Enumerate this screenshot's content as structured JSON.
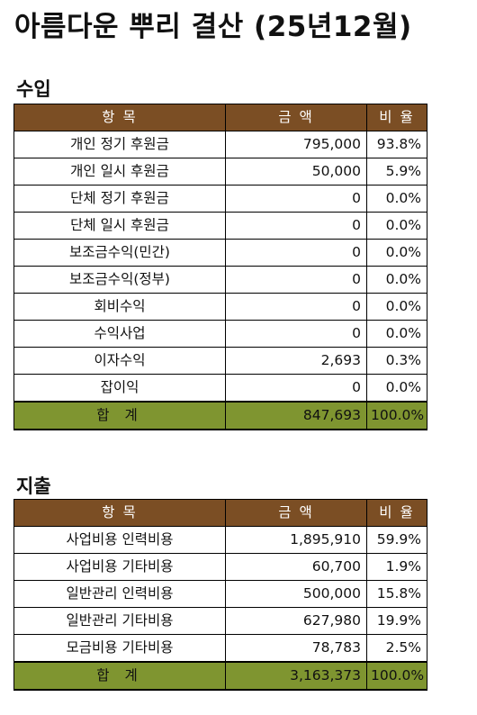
{
  "title": "아름다운 뿌리 결산 (25년12월)",
  "income": {
    "heading": "수입",
    "headers": [
      "항 목",
      "금 액",
      "비 율"
    ],
    "rows": [
      {
        "item": "개인 정기 후원금",
        "amount": "795,000",
        "ratio": "93.8%"
      },
      {
        "item": "개인 일시 후원금",
        "amount": "50,000",
        "ratio": "5.9%"
      },
      {
        "item": "단체 정기 후원금",
        "amount": "0",
        "ratio": "0.0%"
      },
      {
        "item": "단체 일시 후원금",
        "amount": "0",
        "ratio": "0.0%"
      },
      {
        "item": "보조금수익(민간)",
        "amount": "0",
        "ratio": "0.0%"
      },
      {
        "item": "보조금수익(정부)",
        "amount": "0",
        "ratio": "0.0%"
      },
      {
        "item": "회비수익",
        "amount": "0",
        "ratio": "0.0%"
      },
      {
        "item": "수익사업",
        "amount": "0",
        "ratio": "0.0%"
      },
      {
        "item": "이자수익",
        "amount": "2,693",
        "ratio": "0.3%"
      },
      {
        "item": "잡이익",
        "amount": "0",
        "ratio": "0.0%"
      }
    ],
    "total": {
      "item": "합 계",
      "amount": "847,693",
      "ratio": "100.0%"
    }
  },
  "expense": {
    "heading": "지출",
    "headers": [
      "항 목",
      "금 액",
      "비 율"
    ],
    "rows": [
      {
        "item": "사업비용 인력비용",
        "amount": "1,895,910",
        "ratio": "59.9%"
      },
      {
        "item": "사업비용 기타비용",
        "amount": "60,700",
        "ratio": "1.9%"
      },
      {
        "item": "일반관리 인력비용",
        "amount": "500,000",
        "ratio": "15.8%"
      },
      {
        "item": "일반관리 기타비용",
        "amount": "627,980",
        "ratio": "19.9%"
      },
      {
        "item": "모금비용 기타비용",
        "amount": "78,783",
        "ratio": "2.5%"
      }
    ],
    "total": {
      "item": "합 계",
      "amount": "3,163,373",
      "ratio": "100.0%"
    }
  }
}
